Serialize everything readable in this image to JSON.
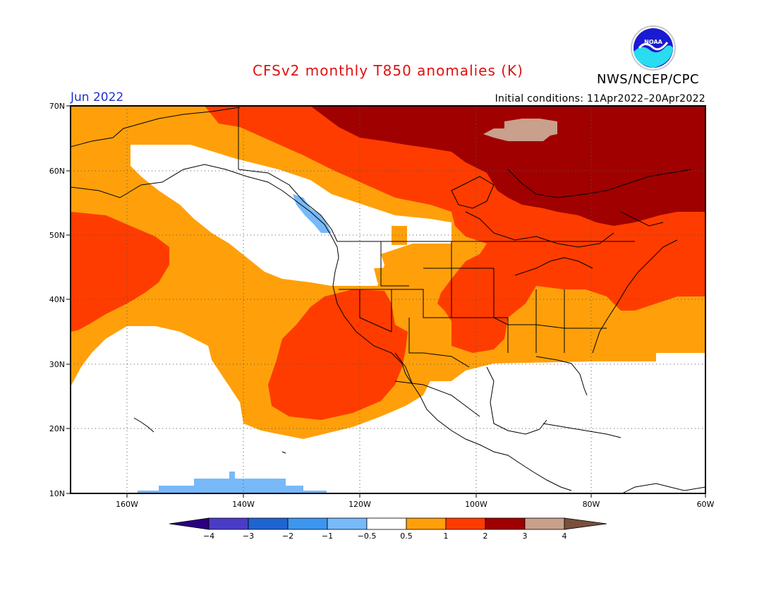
{
  "title": "CFSv2 monthly T850 anomalies (K)",
  "agency": "NWS/NCEP/CPC",
  "logo_text": "NOAA",
  "valid_month": "Jun 2022",
  "initial_conditions": "Initial conditions: 11Apr2022–20Apr2022",
  "axes": {
    "lon_ticks": [
      "160W",
      "140W",
      "120W",
      "100W",
      "80W",
      "60W"
    ],
    "lat_ticks": [
      "70N",
      "60N",
      "50N",
      "40N",
      "30N",
      "20N",
      "10N"
    ]
  },
  "colorbar": {
    "labels": [
      "−4",
      "−3",
      "−2",
      "−1",
      "−0.5",
      "0.5",
      "1",
      "2",
      "3",
      "4"
    ],
    "colors": {
      "lt_-4": "#2a0080",
      "-4_-3": "#4a3cc8",
      "-3_-2": "#1e64d2",
      "-2_-1": "#3c96f0",
      "-1_-0.5": "#78b9fa",
      "-0.5_0.5": "#ffffff",
      "0.5_1": "#ffa00a",
      "1_2": "#ff3c00",
      "2_3": "#a00000",
      "3_4": "#c8a08c",
      "gt_4": "#78503c"
    }
  },
  "palette": {
    "orange": "#ffa00a",
    "red": "#ff3c00",
    "darkred": "#a00000",
    "tan": "#c8a08c",
    "ltblue": "#78b9fa",
    "blue": "#3c96f0"
  }
}
